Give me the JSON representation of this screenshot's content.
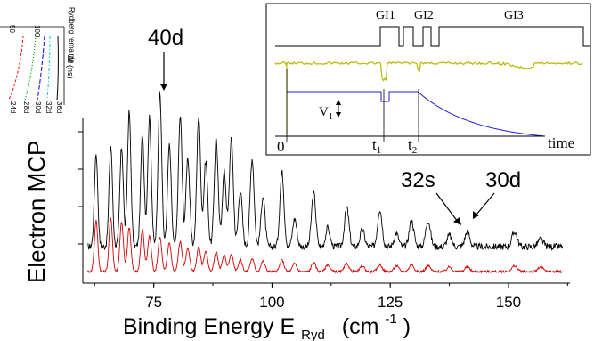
{
  "chart_data": {
    "type": "line",
    "xlabel": "Binding Energy E",
    "xlabel_sub": "Ryd",
    "xlabel_unit_open": "(cm",
    "xlabel_unit_sup": "-1",
    "xlabel_unit_close": ")",
    "ylabel": "Electron MCP",
    "xlim": [
      60,
      163
    ],
    "xticks": [
      75,
      100,
      125,
      150
    ],
    "peak_labels": [
      {
        "text": "40d",
        "x": 76.3
      },
      {
        "text": "32s",
        "x": 137.5
      },
      {
        "text": "30d",
        "x": 141.3
      }
    ],
    "series": [
      {
        "color": "#000000",
        "peaks": [
          62.8,
          65.9,
          68.2,
          69.8,
          72.6,
          74.1,
          76.3,
          78.3,
          80.6,
          82.2,
          84.5,
          86.0,
          88.2,
          89.9,
          91.4,
          93.3,
          95.8,
          98.1,
          102.1,
          104.8,
          108.8,
          111.8,
          115.8,
          119.1,
          122.8,
          126.3,
          129.5,
          133.0,
          137.5,
          141.3,
          151.3,
          156.8
        ],
        "heights": [
          0.5,
          0.54,
          0.53,
          0.72,
          0.6,
          0.69,
          0.83,
          0.54,
          0.7,
          0.48,
          0.7,
          0.46,
          0.58,
          0.4,
          0.58,
          0.3,
          0.47,
          0.27,
          0.4,
          0.15,
          0.29,
          0.1,
          0.21,
          0.09,
          0.2,
          0.07,
          0.14,
          0.14,
          0.06,
          0.08,
          0.08,
          0.04
        ]
      },
      {
        "color": "#d40000",
        "peaks": [
          62.8,
          65.9,
          68.2,
          69.8,
          72.6,
          74.1,
          76.3,
          78.3,
          80.6,
          82.2,
          84.5,
          86.0,
          88.2,
          89.9,
          91.4,
          93.3,
          95.8,
          98.1,
          102.1,
          104.8,
          108.8,
          111.8,
          115.8,
          119.1,
          122.8,
          126.3,
          129.5,
          133.0,
          137.5,
          141.3,
          151.3,
          156.8
        ],
        "heights": [
          0.44,
          0.46,
          0.43,
          0.38,
          0.36,
          0.31,
          0.3,
          0.25,
          0.26,
          0.2,
          0.21,
          0.17,
          0.17,
          0.14,
          0.15,
          0.1,
          0.11,
          0.09,
          0.1,
          0.07,
          0.08,
          0.06,
          0.07,
          0.05,
          0.06,
          0.05,
          0.06,
          0.05,
          0.04,
          0.04,
          0.05,
          0.04
        ]
      }
    ],
    "inset_timing": {
      "labels": [
        "GI1",
        "GI2",
        "GI3"
      ],
      "axis_label": "time",
      "time_marks": [
        {
          "text": "0",
          "sub": ""
        },
        {
          "text": "t",
          "sub": "1"
        },
        {
          "text": "t",
          "sub": "2"
        }
      ],
      "voltage_label": "V",
      "voltage_sub": "1"
    },
    "inset_corner": {
      "title": "Rydberg remainin",
      "tick_labels": [
        "100",
        "50"
      ],
      "ylabel": "Δt (ns)",
      "series_labels": [
        "24d",
        "28d",
        "30d",
        "32d",
        "36d"
      ],
      "colors": [
        "#ff0000",
        "#00a000",
        "#0000ff",
        "#00c8d0",
        "#000000"
      ]
    }
  }
}
